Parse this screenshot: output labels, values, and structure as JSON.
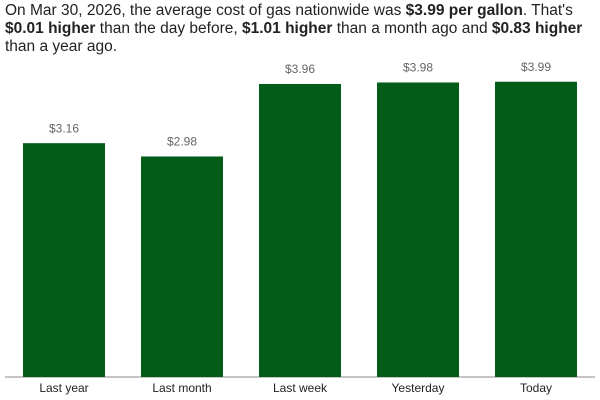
{
  "chart_data": {
    "type": "bar",
    "title_segments": [
      {
        "text": "On Mar 30, 2026, the average cost of gas nationwide was ",
        "bold": false
      },
      {
        "text": "$3.99 per gallon",
        "bold": true
      },
      {
        "text": ". That's ",
        "bold": false
      },
      {
        "text": "$0.01 higher",
        "bold": true
      },
      {
        "text": " than the day before, ",
        "bold": false
      },
      {
        "text": "$1.01 higher",
        "bold": true
      },
      {
        "text": " than a month ago and ",
        "bold": false
      },
      {
        "text": "$0.83 higher",
        "bold": true
      },
      {
        "text": " than a year ago.",
        "bold": false
      }
    ],
    "categories": [
      "Last year",
      "Last month",
      "Last week",
      "Yesterday",
      "Today"
    ],
    "values": [
      3.16,
      2.98,
      3.96,
      3.98,
      3.99
    ],
    "value_labels": [
      "$3.16",
      "$2.98",
      "$3.96",
      "$3.98",
      "$3.99"
    ],
    "color": "#035c17"
  }
}
